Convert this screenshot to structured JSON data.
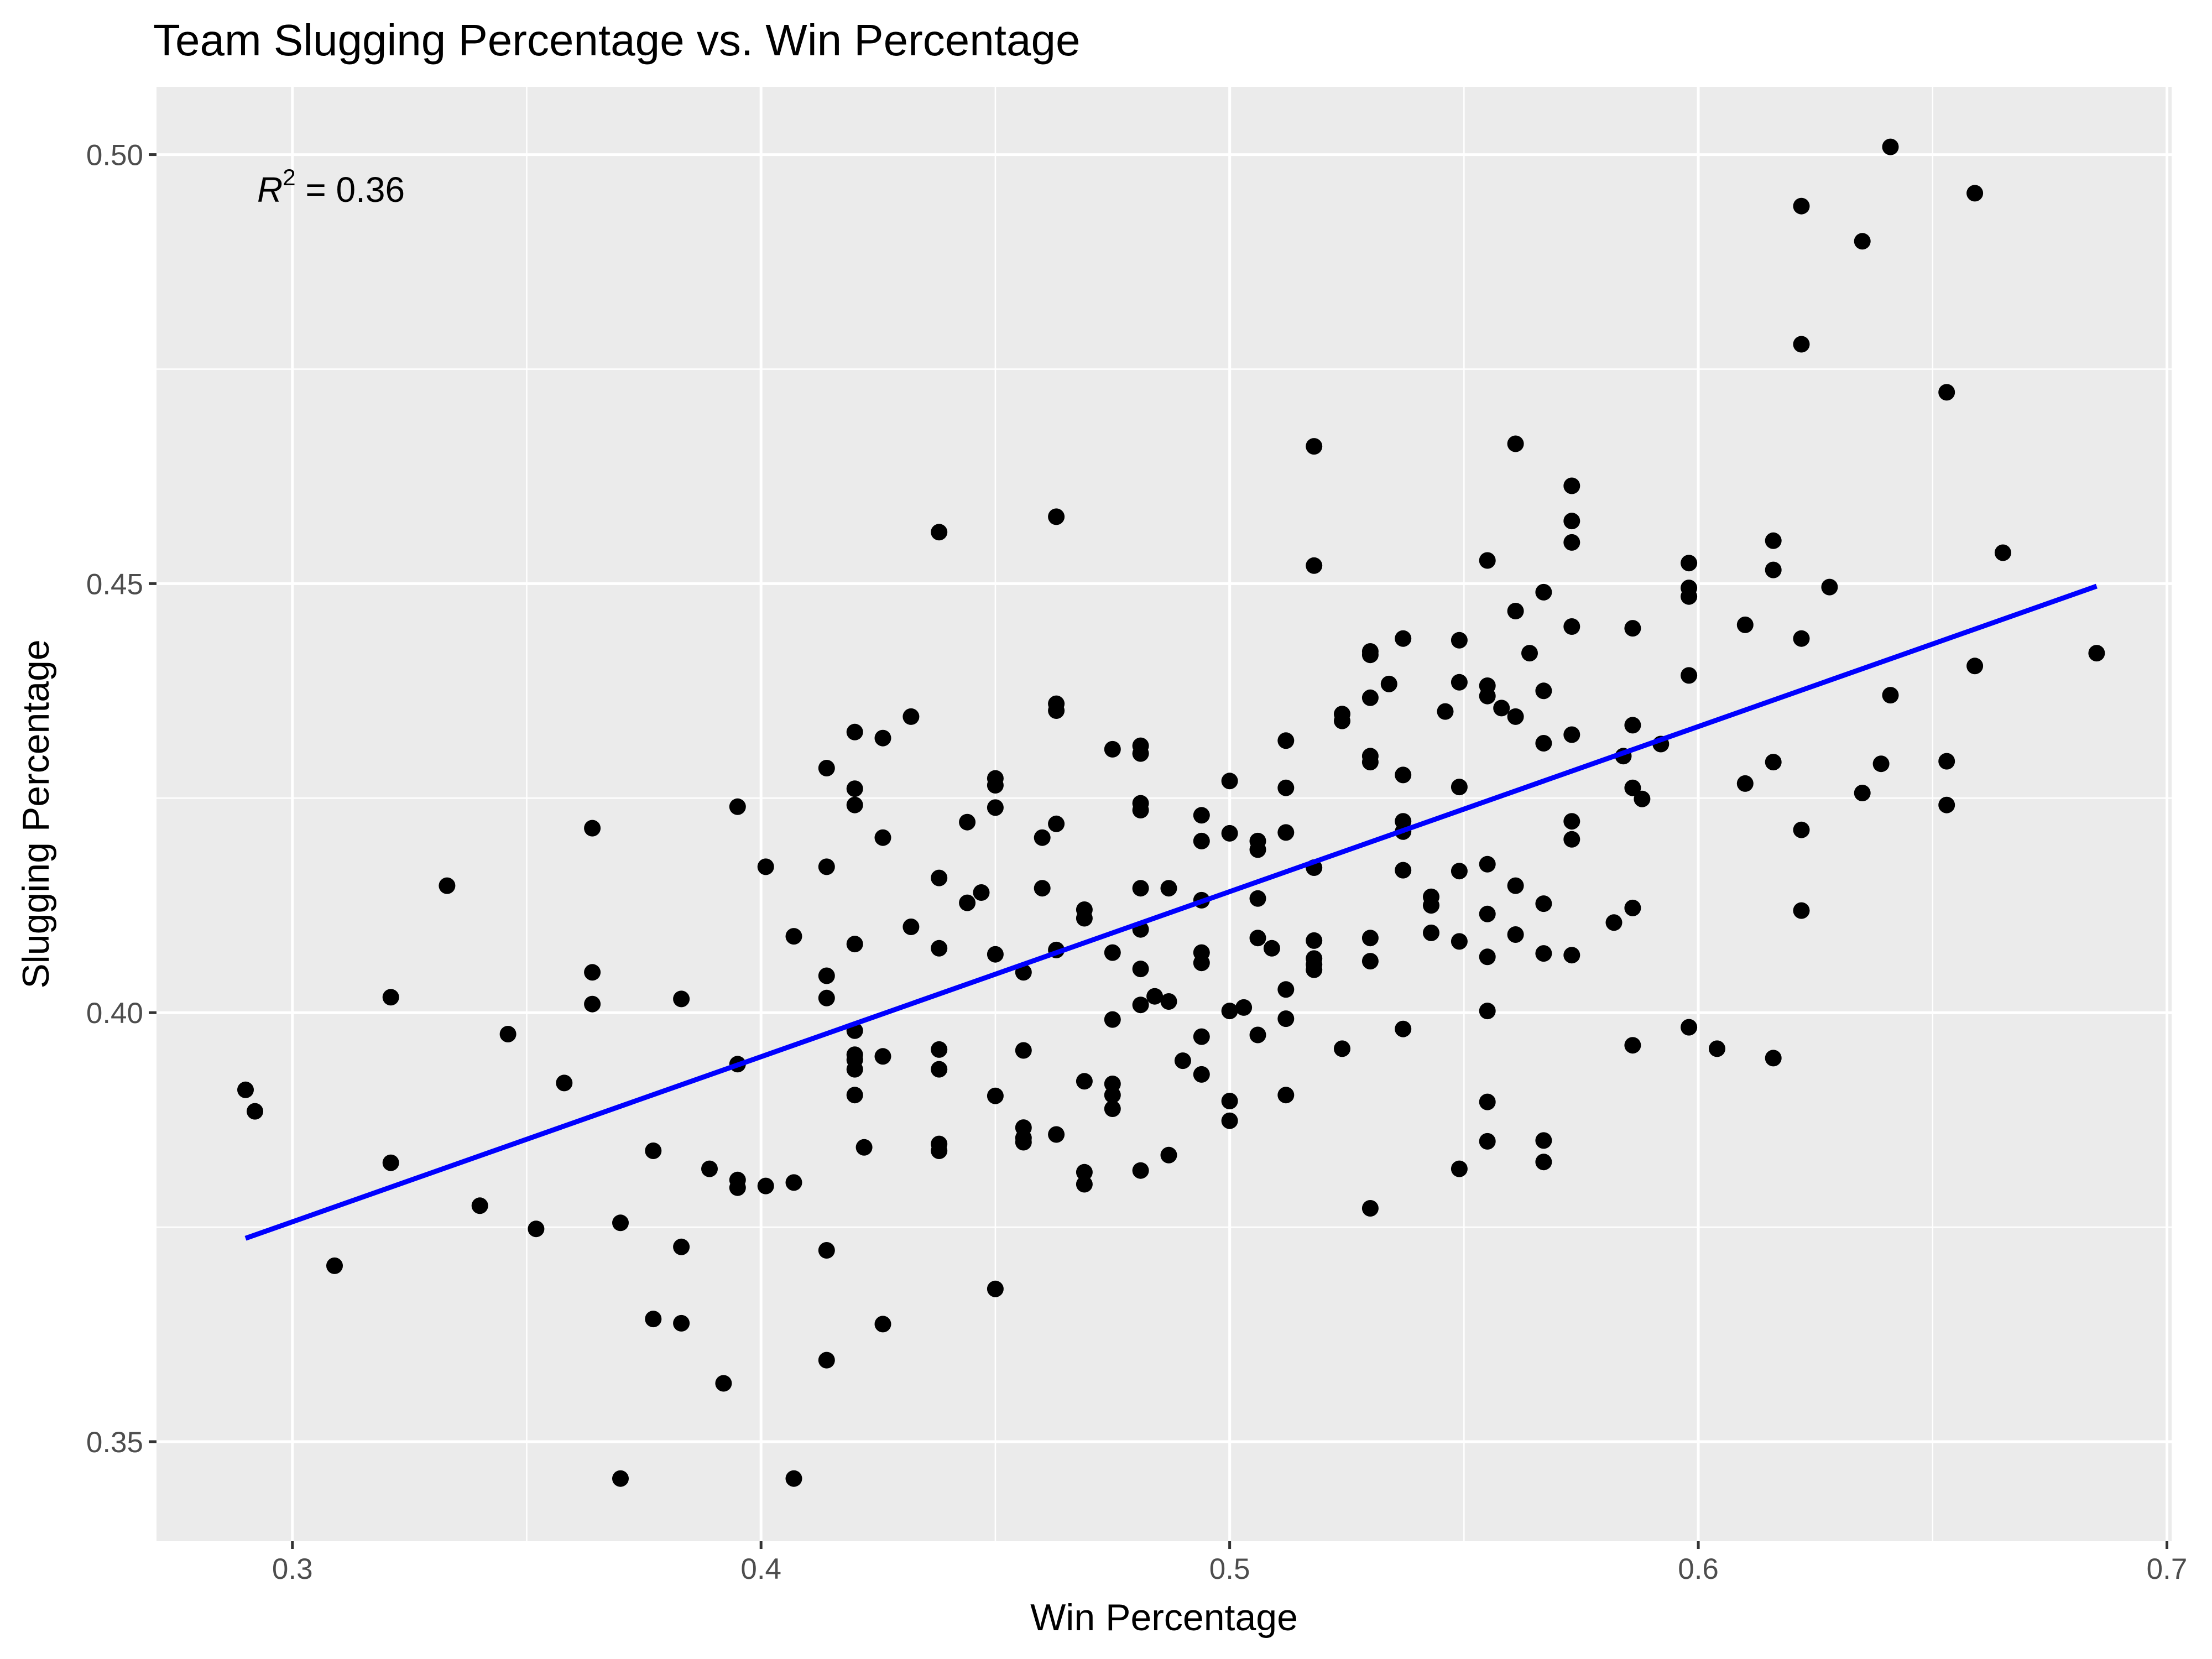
{
  "chart_data": {
    "type": "scatter",
    "title": "Team Slugging Percentage vs. Win Percentage",
    "xlabel": "Win Percentage",
    "ylabel": "Slugging Percentage",
    "xlim": [
      0.271,
      0.701
    ],
    "ylim": [
      0.3384,
      0.5079
    ],
    "xticks": [
      0.3,
      0.4,
      0.5,
      0.6,
      0.7
    ],
    "xtick_labels": [
      "0.3",
      "0.4",
      "0.5",
      "0.6",
      "0.7"
    ],
    "yticks": [
      0.35,
      0.4,
      0.45,
      0.5
    ],
    "ytick_labels": [
      "0.35",
      "0.40",
      "0.45",
      "0.50"
    ],
    "grid": true,
    "annotation": {
      "prefix": "R",
      "superscript": "2",
      "value": " = 0.36"
    },
    "trendline": {
      "x": [
        0.29,
        0.685
      ],
      "y": [
        0.3737,
        0.4497
      ],
      "color": "#0000ff"
    },
    "colors": {
      "panel": "#ebebeb",
      "grid": "#ffffff",
      "points": "#000000",
      "line": "#0000ff"
    },
    "points": [
      [
        0.29,
        0.391
      ],
      [
        0.292,
        0.3885
      ],
      [
        0.309,
        0.3705
      ],
      [
        0.321,
        0.4018
      ],
      [
        0.321,
        0.3825
      ],
      [
        0.333,
        0.4148
      ],
      [
        0.34,
        0.3775
      ],
      [
        0.346,
        0.3975
      ],
      [
        0.352,
        0.3748
      ],
      [
        0.358,
        0.3918
      ],
      [
        0.364,
        0.4215
      ],
      [
        0.364,
        0.4047
      ],
      [
        0.364,
        0.401
      ],
      [
        0.37,
        0.3755
      ],
      [
        0.37,
        0.3457
      ],
      [
        0.377,
        0.3839
      ],
      [
        0.377,
        0.3643
      ],
      [
        0.383,
        0.4016
      ],
      [
        0.383,
        0.3727
      ],
      [
        0.383,
        0.3638
      ],
      [
        0.389,
        0.3818
      ],
      [
        0.392,
        0.3568
      ],
      [
        0.395,
        0.424
      ],
      [
        0.395,
        0.394
      ],
      [
        0.395,
        0.3805
      ],
      [
        0.395,
        0.3796
      ],
      [
        0.401,
        0.417
      ],
      [
        0.401,
        0.3798
      ],
      [
        0.407,
        0.4089
      ],
      [
        0.407,
        0.3802
      ],
      [
        0.407,
        0.3457
      ],
      [
        0.414,
        0.4285
      ],
      [
        0.414,
        0.417
      ],
      [
        0.414,
        0.4043
      ],
      [
        0.414,
        0.4017
      ],
      [
        0.414,
        0.3723
      ],
      [
        0.414,
        0.3595
      ],
      [
        0.42,
        0.4327
      ],
      [
        0.42,
        0.4261
      ],
      [
        0.42,
        0.4242
      ],
      [
        0.42,
        0.408
      ],
      [
        0.42,
        0.3979
      ],
      [
        0.42,
        0.3951
      ],
      [
        0.42,
        0.3945
      ],
      [
        0.42,
        0.3934
      ],
      [
        0.42,
        0.3904
      ],
      [
        0.422,
        0.3843
      ],
      [
        0.426,
        0.432
      ],
      [
        0.426,
        0.4204
      ],
      [
        0.426,
        0.3949
      ],
      [
        0.426,
        0.3637
      ],
      [
        0.432,
        0.4345
      ],
      [
        0.432,
        0.41
      ],
      [
        0.438,
        0.456
      ],
      [
        0.438,
        0.4157
      ],
      [
        0.438,
        0.4075
      ],
      [
        0.438,
        0.3957
      ],
      [
        0.438,
        0.3934
      ],
      [
        0.438,
        0.3847
      ],
      [
        0.438,
        0.3839
      ],
      [
        0.444,
        0.4222
      ],
      [
        0.444,
        0.4128
      ],
      [
        0.447,
        0.414
      ],
      [
        0.45,
        0.4273
      ],
      [
        0.45,
        0.4265
      ],
      [
        0.45,
        0.4239
      ],
      [
        0.45,
        0.4068
      ],
      [
        0.45,
        0.3903
      ],
      [
        0.45,
        0.3678
      ],
      [
        0.456,
        0.4047
      ],
      [
        0.456,
        0.3956
      ],
      [
        0.456,
        0.3866
      ],
      [
        0.456,
        0.3854
      ],
      [
        0.456,
        0.3849
      ],
      [
        0.46,
        0.4204
      ],
      [
        0.46,
        0.4145
      ],
      [
        0.463,
        0.4578
      ],
      [
        0.463,
        0.436
      ],
      [
        0.463,
        0.4352
      ],
      [
        0.463,
        0.422
      ],
      [
        0.463,
        0.4073
      ],
      [
        0.463,
        0.3858
      ],
      [
        0.469,
        0.412
      ],
      [
        0.469,
        0.411
      ],
      [
        0.469,
        0.392
      ],
      [
        0.469,
        0.3814
      ],
      [
        0.469,
        0.38
      ],
      [
        0.475,
        0.4307
      ],
      [
        0.475,
        0.407
      ],
      [
        0.475,
        0.3992
      ],
      [
        0.475,
        0.3917
      ],
      [
        0.475,
        0.3904
      ],
      [
        0.475,
        0.3888
      ],
      [
        0.481,
        0.4311
      ],
      [
        0.481,
        0.4302
      ],
      [
        0.481,
        0.4244
      ],
      [
        0.481,
        0.4236
      ],
      [
        0.481,
        0.4145
      ],
      [
        0.481,
        0.4097
      ],
      [
        0.481,
        0.4051
      ],
      [
        0.481,
        0.4009
      ],
      [
        0.481,
        0.3816
      ],
      [
        0.484,
        0.4019
      ],
      [
        0.487,
        0.4145
      ],
      [
        0.487,
        0.4013
      ],
      [
        0.487,
        0.3834
      ],
      [
        0.49,
        0.3944
      ],
      [
        0.494,
        0.423
      ],
      [
        0.494,
        0.42
      ],
      [
        0.494,
        0.4131
      ],
      [
        0.494,
        0.407
      ],
      [
        0.494,
        0.4058
      ],
      [
        0.494,
        0.3972
      ],
      [
        0.494,
        0.3928
      ],
      [
        0.5,
        0.427
      ],
      [
        0.5,
        0.4209
      ],
      [
        0.5,
        0.4002
      ],
      [
        0.5,
        0.3897
      ],
      [
        0.5,
        0.3874
      ],
      [
        0.503,
        0.4006
      ],
      [
        0.506,
        0.42
      ],
      [
        0.506,
        0.419
      ],
      [
        0.506,
        0.4133
      ],
      [
        0.506,
        0.4087
      ],
      [
        0.506,
        0.3974
      ],
      [
        0.509,
        0.4075
      ],
      [
        0.512,
        0.4317
      ],
      [
        0.512,
        0.4262
      ],
      [
        0.512,
        0.421
      ],
      [
        0.512,
        0.4027
      ],
      [
        0.512,
        0.3993
      ],
      [
        0.512,
        0.3904
      ],
      [
        0.518,
        0.466
      ],
      [
        0.518,
        0.4521
      ],
      [
        0.518,
        0.4169
      ],
      [
        0.518,
        0.4084
      ],
      [
        0.518,
        0.4063
      ],
      [
        0.518,
        0.4056
      ],
      [
        0.518,
        0.405
      ],
      [
        0.524,
        0.4348
      ],
      [
        0.524,
        0.434
      ],
      [
        0.524,
        0.3958
      ],
      [
        0.53,
        0.4421
      ],
      [
        0.53,
        0.4417
      ],
      [
        0.53,
        0.4367
      ],
      [
        0.53,
        0.4299
      ],
      [
        0.53,
        0.4292
      ],
      [
        0.53,
        0.4087
      ],
      [
        0.53,
        0.406
      ],
      [
        0.53,
        0.3772
      ],
      [
        0.534,
        0.4383
      ],
      [
        0.537,
        0.4436
      ],
      [
        0.537,
        0.4277
      ],
      [
        0.537,
        0.4223
      ],
      [
        0.537,
        0.4211
      ],
      [
        0.537,
        0.4166
      ],
      [
        0.537,
        0.3981
      ],
      [
        0.543,
        0.4135
      ],
      [
        0.543,
        0.4125
      ],
      [
        0.543,
        0.4093
      ],
      [
        0.546,
        0.4351
      ],
      [
        0.549,
        0.4434
      ],
      [
        0.549,
        0.4385
      ],
      [
        0.549,
        0.4263
      ],
      [
        0.549,
        0.4165
      ],
      [
        0.549,
        0.4083
      ],
      [
        0.549,
        0.3818
      ],
      [
        0.555,
        0.4527
      ],
      [
        0.555,
        0.4381
      ],
      [
        0.555,
        0.4369
      ],
      [
        0.555,
        0.4173
      ],
      [
        0.555,
        0.4115
      ],
      [
        0.555,
        0.4065
      ],
      [
        0.555,
        0.4002
      ],
      [
        0.555,
        0.3896
      ],
      [
        0.555,
        0.385
      ],
      [
        0.558,
        0.4355
      ],
      [
        0.561,
        0.4663
      ],
      [
        0.561,
        0.4468
      ],
      [
        0.561,
        0.4345
      ],
      [
        0.561,
        0.4148
      ],
      [
        0.561,
        0.4091
      ],
      [
        0.564,
        0.4419
      ],
      [
        0.567,
        0.449
      ],
      [
        0.567,
        0.4375
      ],
      [
        0.567,
        0.4314
      ],
      [
        0.567,
        0.4127
      ],
      [
        0.567,
        0.4069
      ],
      [
        0.567,
        0.3851
      ],
      [
        0.567,
        0.3826
      ],
      [
        0.573,
        0.4614
      ],
      [
        0.573,
        0.4573
      ],
      [
        0.573,
        0.4548
      ],
      [
        0.573,
        0.445
      ],
      [
        0.573,
        0.4324
      ],
      [
        0.573,
        0.4223
      ],
      [
        0.573,
        0.4202
      ],
      [
        0.573,
        0.4067
      ],
      [
        0.582,
        0.4105
      ],
      [
        0.584,
        0.4299
      ],
      [
        0.586,
        0.4448
      ],
      [
        0.586,
        0.4335
      ],
      [
        0.586,
        0.4262
      ],
      [
        0.586,
        0.4122
      ],
      [
        0.586,
        0.3962
      ],
      [
        0.588,
        0.4249
      ],
      [
        0.592,
        0.4313
      ],
      [
        0.598,
        0.4524
      ],
      [
        0.598,
        0.4495
      ],
      [
        0.598,
        0.4485
      ],
      [
        0.598,
        0.4393
      ],
      [
        0.598,
        0.3983
      ],
      [
        0.604,
        0.3958
      ],
      [
        0.61,
        0.4452
      ],
      [
        0.61,
        0.4267
      ],
      [
        0.616,
        0.455
      ],
      [
        0.616,
        0.4516
      ],
      [
        0.616,
        0.4292
      ],
      [
        0.616,
        0.3947
      ],
      [
        0.622,
        0.494
      ],
      [
        0.622,
        0.4779
      ],
      [
        0.622,
        0.4436
      ],
      [
        0.622,
        0.4213
      ],
      [
        0.622,
        0.4119
      ],
      [
        0.628,
        0.4496
      ],
      [
        0.635,
        0.4899
      ],
      [
        0.635,
        0.4256
      ],
      [
        0.639,
        0.429
      ],
      [
        0.641,
        0.5009
      ],
      [
        0.641,
        0.437
      ],
      [
        0.653,
        0.4723
      ],
      [
        0.653,
        0.4293
      ],
      [
        0.653,
        0.4242
      ],
      [
        0.659,
        0.4955
      ],
      [
        0.659,
        0.4404
      ],
      [
        0.665,
        0.4536
      ],
      [
        0.685,
        0.4419
      ]
    ]
  }
}
